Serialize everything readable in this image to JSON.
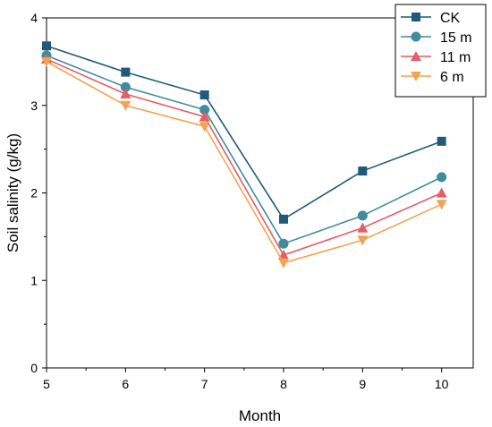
{
  "chart_data": {
    "type": "line",
    "title": "",
    "xlabel": "Month",
    "ylabel": "Soil salinity (g/kg)",
    "xlim": [
      5,
      10.4
    ],
    "ylim": [
      0,
      4
    ],
    "x": [
      5,
      6,
      7,
      8,
      9,
      10
    ],
    "x_tick_labels": [
      "5",
      "6",
      "7",
      "8",
      "9",
      "10"
    ],
    "y_tick_labels": [
      "0",
      "1",
      "2",
      "3",
      "4"
    ],
    "legend_position": "top-right",
    "grid": false,
    "series": [
      {
        "name": "CK",
        "color": "#1f5a7a",
        "marker": "square",
        "values": [
          3.68,
          3.38,
          3.12,
          1.7,
          2.25,
          2.59
        ]
      },
      {
        "name": "15 m",
        "color": "#3f8c9c",
        "marker": "circle",
        "values": [
          3.57,
          3.21,
          2.95,
          1.42,
          1.74,
          2.18
        ]
      },
      {
        "name": "11 m",
        "color": "#e55d66",
        "marker": "triangle-up",
        "values": [
          3.53,
          3.13,
          2.87,
          1.29,
          1.6,
          2.0
        ]
      },
      {
        "name": "6 m",
        "color": "#f2a451",
        "marker": "triangle-down",
        "values": [
          3.5,
          3.0,
          2.76,
          1.2,
          1.46,
          1.87
        ]
      }
    ]
  }
}
